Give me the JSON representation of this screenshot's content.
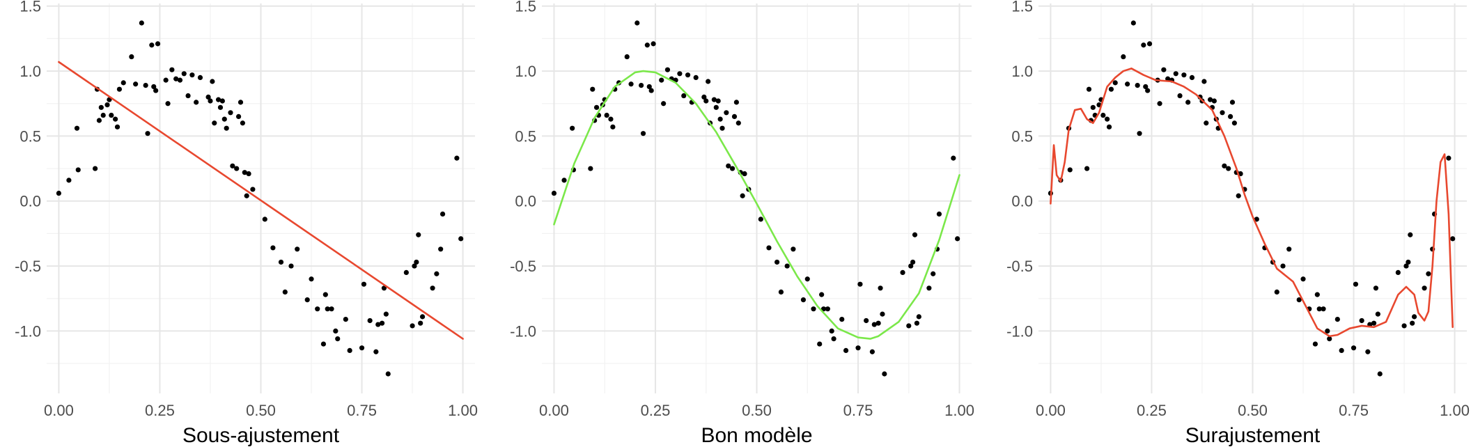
{
  "chart_data": [
    {
      "type": "scatter",
      "xlabel": "Sous-ajustement",
      "ylabel": "",
      "xlim": [
        -0.03,
        1.03
      ],
      "ylim": [
        -1.48,
        1.52
      ],
      "x_ticks": [
        "0.00",
        "0.25",
        "0.50",
        "0.75",
        "1.00"
      ],
      "y_ticks": [
        "1.5",
        "1.0",
        "0.5",
        "0.0",
        "-0.5",
        "-1.0"
      ],
      "grid": true,
      "fit_color": "#e8482f",
      "fit": {
        "x": [
          0.0,
          1.0
        ],
        "y": [
          1.07,
          -1.06
        ]
      }
    },
    {
      "type": "scatter",
      "xlabel": "Bon modèle",
      "ylabel": "",
      "xlim": [
        -0.03,
        1.03
      ],
      "ylim": [
        -1.48,
        1.52
      ],
      "x_ticks": [
        "0.00",
        "0.25",
        "0.50",
        "0.75",
        "1.00"
      ],
      "y_ticks": [
        "1.5",
        "1.0",
        "0.5",
        "0.0",
        "-0.5",
        "-1.0"
      ],
      "grid": true,
      "fit_color": "#7be84a",
      "fit": {
        "x": [
          0.0,
          0.05,
          0.1,
          0.15,
          0.2,
          0.22,
          0.25,
          0.3,
          0.35,
          0.4,
          0.45,
          0.5,
          0.55,
          0.6,
          0.65,
          0.7,
          0.75,
          0.78,
          0.8,
          0.85,
          0.9,
          0.95,
          1.0
        ],
        "y": [
          -0.18,
          0.29,
          0.64,
          0.88,
          0.99,
          1.0,
          0.99,
          0.91,
          0.75,
          0.53,
          0.26,
          -0.02,
          -0.31,
          -0.58,
          -0.81,
          -0.98,
          -1.05,
          -1.06,
          -1.04,
          -0.93,
          -0.71,
          -0.3,
          0.2
        ]
      }
    },
    {
      "type": "scatter",
      "xlabel": "Surajustement",
      "ylabel": "",
      "xlim": [
        -0.03,
        1.03
      ],
      "ylim": [
        -1.48,
        1.52
      ],
      "x_ticks": [
        "0.00",
        "0.25",
        "0.50",
        "0.75",
        "1.00"
      ],
      "y_ticks": [
        "1.5",
        "1.0",
        "0.5",
        "0.0",
        "-0.5",
        "-1.0"
      ],
      "grid": true,
      "fit_color": "#e8482f",
      "fit": {
        "x": [
          0.0,
          0.008,
          0.015,
          0.025,
          0.035,
          0.045,
          0.06,
          0.075,
          0.09,
          0.105,
          0.12,
          0.14,
          0.16,
          0.18,
          0.2,
          0.23,
          0.26,
          0.3,
          0.33,
          0.36,
          0.4,
          0.43,
          0.46,
          0.48,
          0.5,
          0.53,
          0.56,
          0.6,
          0.63,
          0.66,
          0.69,
          0.71,
          0.74,
          0.77,
          0.8,
          0.83,
          0.86,
          0.88,
          0.9,
          0.91,
          0.925,
          0.935,
          0.945,
          0.955,
          0.965,
          0.975,
          0.985,
          0.995
        ],
        "y": [
          -0.02,
          0.43,
          0.2,
          0.15,
          0.3,
          0.55,
          0.7,
          0.71,
          0.63,
          0.6,
          0.68,
          0.88,
          0.95,
          1.0,
          1.02,
          0.97,
          0.93,
          0.92,
          0.88,
          0.82,
          0.7,
          0.5,
          0.25,
          0.05,
          -0.12,
          -0.33,
          -0.52,
          -0.62,
          -0.8,
          -0.98,
          -1.04,
          -1.03,
          -0.98,
          -0.96,
          -0.97,
          -0.93,
          -0.72,
          -0.66,
          -0.72,
          -0.86,
          -0.92,
          -0.85,
          -0.5,
          0.0,
          0.3,
          0.36,
          -0.1,
          -0.97
        ]
      }
    }
  ],
  "points": {
    "color": "#000000",
    "x": [
      0.0,
      0.025,
      0.045,
      0.048,
      0.09,
      0.095,
      0.1,
      0.105,
      0.11,
      0.12,
      0.125,
      0.13,
      0.14,
      0.145,
      0.15,
      0.16,
      0.18,
      0.19,
      0.205,
      0.215,
      0.22,
      0.23,
      0.235,
      0.24,
      0.245,
      0.265,
      0.27,
      0.28,
      0.29,
      0.3,
      0.31,
      0.32,
      0.33,
      0.34,
      0.35,
      0.37,
      0.375,
      0.38,
      0.385,
      0.395,
      0.4,
      0.405,
      0.41,
      0.415,
      0.425,
      0.43,
      0.44,
      0.445,
      0.45,
      0.455,
      0.46,
      0.465,
      0.47,
      0.48,
      0.51,
      0.53,
      0.55,
      0.56,
      0.575,
      0.59,
      0.615,
      0.625,
      0.64,
      0.655,
      0.66,
      0.665,
      0.675,
      0.685,
      0.69,
      0.71,
      0.72,
      0.75,
      0.755,
      0.77,
      0.785,
      0.79,
      0.8,
      0.805,
      0.81,
      0.815,
      0.86,
      0.875,
      0.88,
      0.885,
      0.89,
      0.895,
      0.9,
      0.925,
      0.935,
      0.945,
      0.95,
      0.985,
      0.995
    ],
    "y": [
      0.06,
      0.16,
      0.56,
      0.24,
      0.25,
      0.86,
      0.62,
      0.72,
      0.66,
      0.74,
      0.78,
      0.66,
      0.63,
      0.57,
      0.86,
      0.91,
      1.11,
      0.9,
      1.37,
      0.89,
      0.52,
      1.2,
      0.88,
      0.85,
      1.21,
      0.93,
      0.75,
      1.01,
      0.94,
      0.93,
      0.98,
      0.81,
      0.97,
      0.76,
      0.95,
      0.8,
      0.77,
      0.92,
      0.6,
      0.78,
      0.72,
      0.77,
      0.63,
      0.56,
      0.68,
      0.27,
      0.25,
      0.65,
      0.76,
      0.6,
      0.22,
      0.04,
      0.21,
      0.09,
      -0.14,
      -0.36,
      -0.47,
      -0.7,
      -0.5,
      -0.37,
      -0.76,
      -0.6,
      -0.83,
      -1.1,
      -0.72,
      -0.83,
      -0.83,
      -1.0,
      -1.06,
      -0.91,
      -1.15,
      -1.13,
      -0.64,
      -0.92,
      -1.16,
      -0.95,
      -0.94,
      -0.67,
      -0.87,
      -1.33,
      -0.55,
      -0.96,
      -0.5,
      -0.47,
      -0.26,
      -0.94,
      -0.89,
      -0.67,
      -0.56,
      -0.37,
      -0.1,
      0.33,
      -0.29
    ]
  }
}
